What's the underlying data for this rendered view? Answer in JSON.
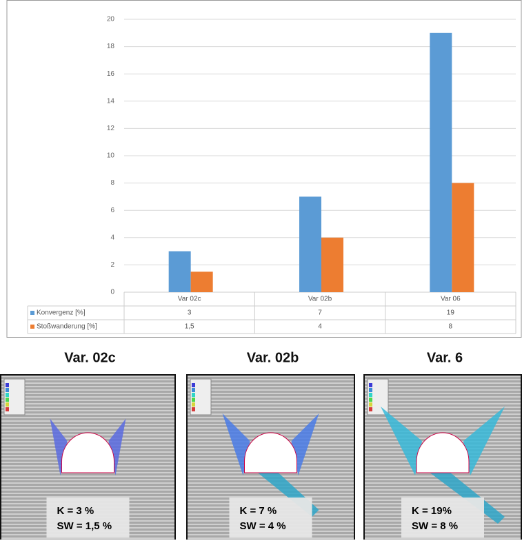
{
  "chart_data": {
    "type": "bar",
    "categories": [
      "Var 02c",
      "Var 02b",
      "Var 06"
    ],
    "series": [
      {
        "name": "Konvergenz [%]",
        "color": "#5b9bd5",
        "values": [
          3,
          7,
          19
        ]
      },
      {
        "name": "Stoßwanderung [%]",
        "color": "#ed7d31",
        "values": [
          1.5,
          4,
          8
        ],
        "value_labels": [
          "1,5",
          "4",
          "8"
        ]
      }
    ],
    "ylim": [
      0,
      20
    ],
    "yticks": [
      0,
      2,
      4,
      6,
      8,
      10,
      12,
      14,
      16,
      18,
      20
    ],
    "grid": true
  },
  "panels": [
    {
      "title": "Var. 02c",
      "k_label": "K =    3 %",
      "sw_label": "SW =  1,5 %"
    },
    {
      "title": "Var. 02b",
      "k_label": "K =   7 %",
      "sw_label": "SW = 4 %"
    },
    {
      "title": "Var. 6",
      "k_label": "K =   19%",
      "sw_label": "SW =  8 %"
    }
  ]
}
